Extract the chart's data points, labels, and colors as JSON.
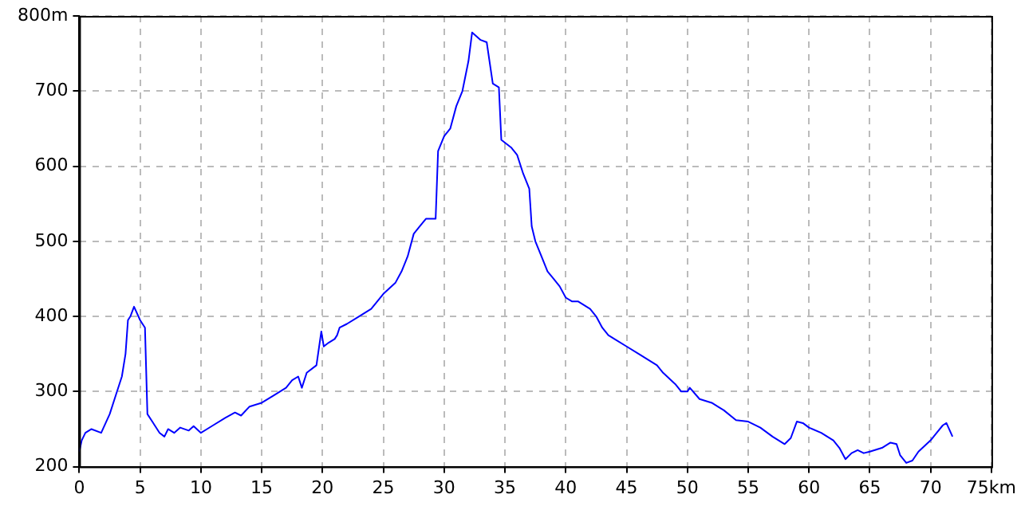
{
  "chart_data": {
    "type": "line",
    "marker": "none",
    "line_style": "solid",
    "grid": true,
    "legend": false,
    "xlim": [
      0,
      75
    ],
    "ylim": [
      200,
      800
    ],
    "xticks": [
      0,
      5,
      10,
      15,
      20,
      25,
      30,
      35,
      40,
      45,
      50,
      55,
      60,
      65,
      70,
      {
        "value": 75,
        "label": "75km"
      }
    ],
    "yticks": [
      200,
      300,
      400,
      500,
      600,
      700,
      {
        "value": 800,
        "label": "800m"
      }
    ],
    "series": [
      {
        "color": "#0000ff",
        "x": [
          0,
          0.2,
          0.5,
          1,
          1.8,
          2.5,
          3,
          3.5,
          3.8,
          4,
          4.2,
          4.5,
          5,
          5.4,
          5.6,
          6,
          6.6,
          7,
          7.3,
          7.8,
          8.3,
          9,
          9.4,
          10,
          11,
          12,
          12.8,
          13.3,
          14,
          15,
          16,
          17,
          17.5,
          18,
          18.3,
          18.7,
          19.5,
          19.9,
          20.1,
          20.5,
          21,
          21.2,
          21.4,
          22,
          23,
          24,
          25,
          26,
          26.5,
          27,
          27.5,
          28,
          28.5,
          29.3,
          29.5,
          30,
          30.5,
          31,
          31.5,
          32,
          32.3,
          33,
          33.5,
          34,
          34.5,
          34.7,
          35.5,
          36,
          36.5,
          37,
          37.2,
          37.5,
          38,
          38.5,
          39,
          39.5,
          40,
          40.5,
          41,
          42,
          42.5,
          43,
          43.5,
          44,
          45,
          46,
          47,
          47.5,
          48,
          49,
          49.5,
          50,
          50.2,
          51,
          52,
          53,
          54,
          55,
          56,
          57,
          58,
          58.5,
          59,
          59.5,
          60,
          61,
          62,
          62.5,
          63,
          63.5,
          64,
          64.5,
          65,
          66,
          66.7,
          67.2,
          67.5,
          68,
          68.5,
          69,
          70,
          70.5,
          71,
          71.3,
          71.8
        ],
        "values": [
          220,
          235,
          245,
          250,
          245,
          270,
          295,
          320,
          350,
          395,
          400,
          413,
          395,
          385,
          270,
          260,
          245,
          240,
          250,
          245,
          252,
          248,
          254,
          245,
          255,
          265,
          272,
          268,
          280,
          285,
          295,
          305,
          315,
          320,
          305,
          325,
          335,
          380,
          360,
          365,
          370,
          375,
          385,
          390,
          400,
          410,
          430,
          445,
          460,
          480,
          510,
          520,
          530,
          530,
          620,
          640,
          650,
          680,
          700,
          740,
          778,
          768,
          765,
          710,
          705,
          635,
          625,
          615,
          590,
          570,
          520,
          500,
          480,
          460,
          450,
          440,
          425,
          420,
          420,
          410,
          400,
          385,
          375,
          370,
          360,
          350,
          340,
          335,
          325,
          310,
          300,
          300,
          305,
          290,
          285,
          275,
          262,
          260,
          252,
          240,
          230,
          238,
          260,
          258,
          252,
          245,
          235,
          225,
          210,
          218,
          222,
          218,
          220,
          225,
          232,
          230,
          215,
          205,
          208,
          220,
          235,
          245,
          255,
          258,
          240
        ]
      }
    ]
  }
}
